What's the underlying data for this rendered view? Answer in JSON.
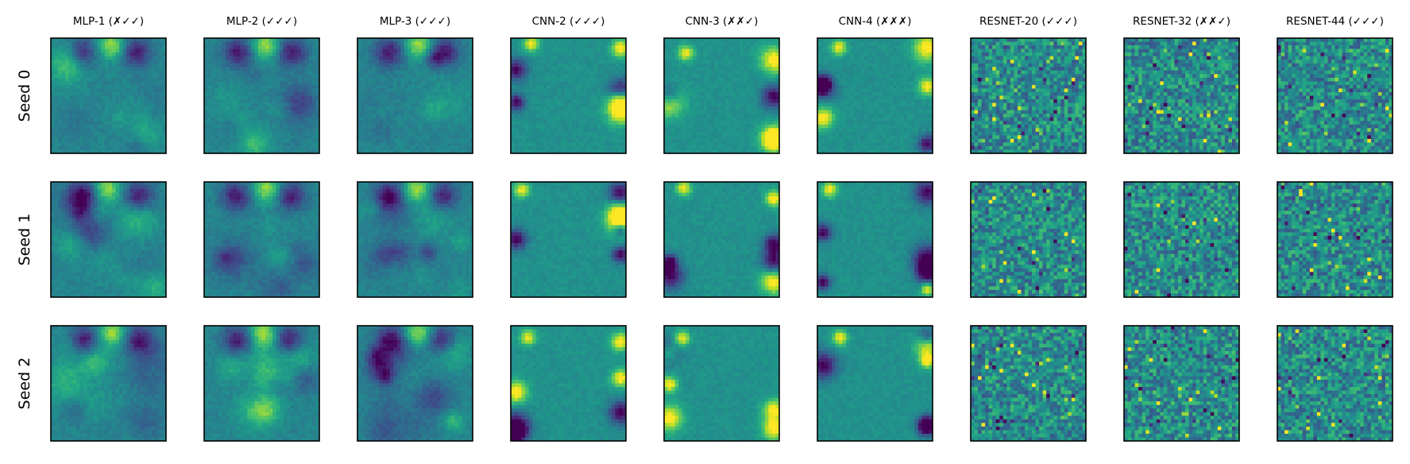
{
  "chart_data": {
    "type": "heatmap",
    "colormap": "viridis",
    "grid": false,
    "axis_ticks": false,
    "columns": [
      "MLP-1 (✗✓✓)",
      "MLP-2 (✓✓✓)",
      "MLP-3 (✓✓✓)",
      "CNN-2 (✓✓✓)",
      "CNN-3 (✗✗✓)",
      "CNN-4 (✗✗✗)",
      "RESNET-20 (✓✓✓)",
      "RESNET-32 (✗✗✓)",
      "RESNET-44 (✓✓✓)"
    ],
    "rows": [
      "Seed 0",
      "Seed 1",
      "Seed 2"
    ],
    "column_families": [
      "mlp",
      "mlp",
      "mlp",
      "cnn",
      "cnn",
      "cnn",
      "resnet",
      "resnet",
      "resnet"
    ],
    "colors": {
      "viridis_low": "#440154",
      "viridis_mid": "#21918c",
      "viridis_high": "#fde725",
      "frame": "#000000",
      "background": "#ffffff"
    }
  }
}
